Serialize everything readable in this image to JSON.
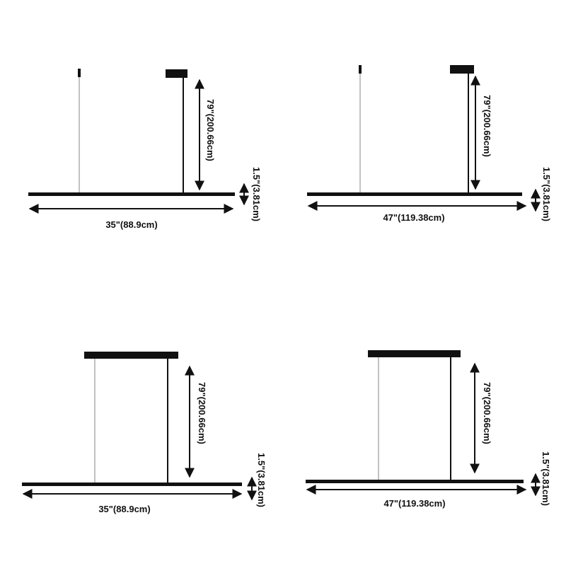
{
  "panels": [
    {
      "width_label": "35\"(88.9cm)",
      "height_label": "79\"(200.66cm)",
      "thickness_label": "1.5\"(3.81cm)",
      "canopy": "small"
    },
    {
      "width_label": "47\"(119.38cm)",
      "height_label": "79\"(200.66cm)",
      "thickness_label": "1.5\"(3.81cm)",
      "canopy": "small"
    },
    {
      "width_label": "35\"(88.9cm)",
      "height_label": "79\"(200.66cm)",
      "thickness_label": "1.5\"(3.81cm)",
      "canopy": "linear"
    },
    {
      "width_label": "47\"(119.38cm)",
      "height_label": "79\"(200.66cm)",
      "thickness_label": "1.5\"(3.81cm)",
      "canopy": "linear"
    }
  ],
  "colors": {
    "fixture": "#111111",
    "wire": "#9a9a9a",
    "arrow": "#111111"
  }
}
